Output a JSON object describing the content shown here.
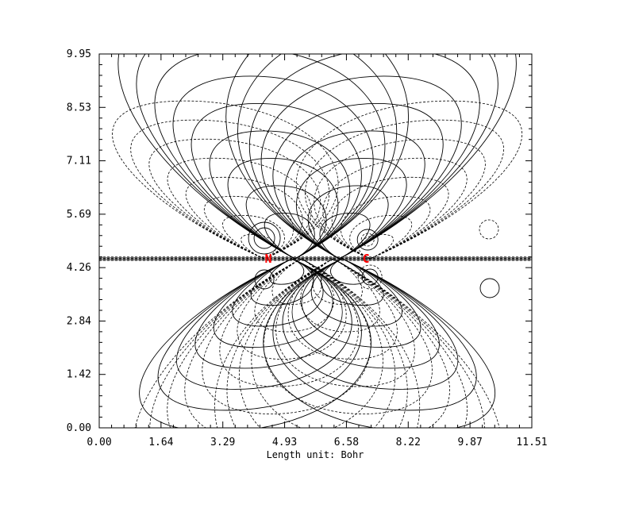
{
  "chart_data": {
    "type": "contour",
    "xlabel": "Length unit: Bohr",
    "ylabel": "",
    "xlim": [
      0.0,
      11.51
    ],
    "ylim": [
      0.0,
      9.95
    ],
    "xticks": [
      "0.00",
      "1.64",
      "3.29",
      "4.93",
      "6.58",
      "8.22",
      "9.87",
      "11.51"
    ],
    "yticks": [
      "0.00",
      "1.42",
      "2.84",
      "4.26",
      "5.69",
      "7.11",
      "8.53",
      "9.95"
    ],
    "grid": false,
    "legend": "none",
    "contour_styles": {
      "positive": "solid",
      "negative": "dashed"
    },
    "atoms": [
      {
        "symbol": "N",
        "x": 4.5,
        "y": 4.5,
        "color": "#ff0000"
      },
      {
        "symbol": "C",
        "x": 7.1,
        "y": 4.5,
        "color": "#ff0000"
      }
    ]
  }
}
